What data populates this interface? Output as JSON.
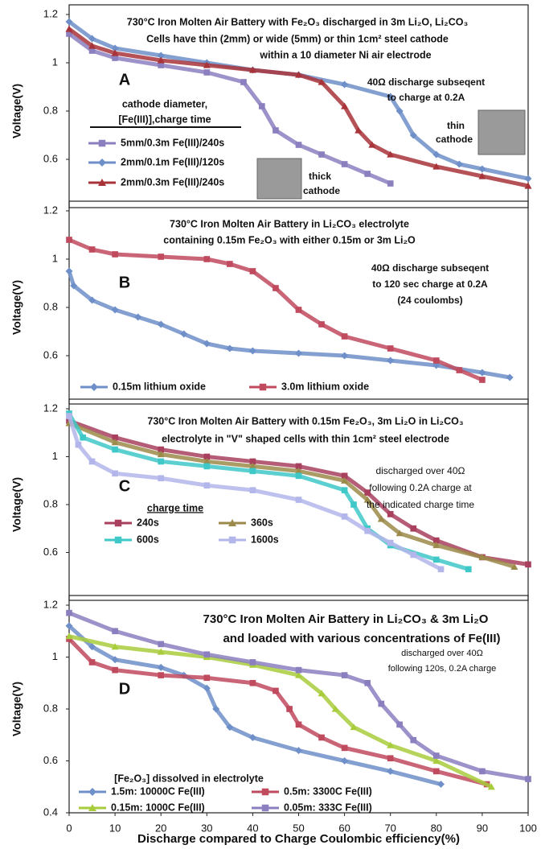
{
  "chart_data": [
    {
      "type": "line",
      "label": "A",
      "title": [
        "730°C  Iron Molten Air Battery with Fe₂O₃ discharged in 3m Li₂O, Li₂CO₃",
        "Cells have thin (2mm) or wide (5mm) or thin 1cm² steel cathode",
        "within a 10 diameter Ni air electrode"
      ],
      "annotations": [
        "40Ω discharge subseqent",
        "to charge at 0.2A",
        "thin",
        "cathode",
        "thick",
        "cathode"
      ],
      "legend_title": [
        "cathode diameter,",
        "[Fe(III)],charge time"
      ],
      "y_label": "Voltage(V)",
      "xlim": [
        0,
        100
      ],
      "ylim": [
        0.4,
        1.2
      ],
      "yticks": [
        0.6,
        0.8,
        1,
        1.2
      ],
      "series": [
        {
          "name": "5mm/0.3m Fe(III)/240s",
          "color": "#8c7fbf",
          "marker": "square",
          "x": [
            0,
            5,
            10,
            20,
            30,
            38,
            42,
            45,
            50,
            55,
            60,
            65,
            70
          ],
          "values": [
            1.12,
            1.05,
            1.02,
            0.99,
            0.96,
            0.92,
            0.82,
            0.72,
            0.66,
            0.62,
            0.58,
            0.54,
            0.5
          ]
        },
        {
          "name": "2mm/0.1m Fe(III)/120s",
          "color": "#6f8fc9",
          "marker": "diamond",
          "x": [
            0,
            5,
            10,
            20,
            30,
            40,
            50,
            60,
            70,
            72,
            75,
            80,
            85,
            90,
            100
          ],
          "values": [
            1.17,
            1.1,
            1.06,
            1.03,
            1.0,
            0.97,
            0.95,
            0.91,
            0.86,
            0.8,
            0.7,
            0.62,
            0.58,
            0.56,
            0.52
          ]
        },
        {
          "name": "2mm/0.3m Fe(III)/240s",
          "color": "#a8343a",
          "marker": "triangle",
          "x": [
            0,
            5,
            10,
            20,
            30,
            40,
            50,
            55,
            60,
            63,
            66,
            70,
            80,
            90,
            100
          ],
          "values": [
            1.14,
            1.07,
            1.04,
            1.01,
            0.99,
            0.97,
            0.95,
            0.92,
            0.82,
            0.72,
            0.66,
            0.62,
            0.57,
            0.53,
            0.49
          ]
        }
      ]
    },
    {
      "type": "line",
      "label": "B",
      "title": [
        "730°C Iron Molten Air Battery in Li₂CO₃ electrolyte",
        "containing 0.15m Fe₂O₃ with either 0.15m or 3m Li₂O"
      ],
      "annotations": [
        "40Ω discharge subseqent",
        "to 120 sec charge at 0.2A",
        "(24 coulombs)"
      ],
      "y_label": "Voltage(V)",
      "xlim": [
        0,
        100
      ],
      "ylim": [
        0.4,
        1.2
      ],
      "yticks": [
        0.6,
        0.8,
        1,
        1.2
      ],
      "series": [
        {
          "name": "0.15m lithium oxide",
          "color": "#6f8fc9",
          "marker": "diamond",
          "x": [
            0,
            1,
            5,
            10,
            15,
            20,
            25,
            30,
            35,
            40,
            50,
            60,
            70,
            80,
            90,
            96
          ],
          "values": [
            0.95,
            0.89,
            0.83,
            0.79,
            0.76,
            0.73,
            0.69,
            0.65,
            0.63,
            0.62,
            0.61,
            0.6,
            0.58,
            0.56,
            0.53,
            0.51
          ]
        },
        {
          "name": "3.0m lithium oxide",
          "color": "#c04a5e",
          "marker": "square",
          "x": [
            0,
            5,
            10,
            20,
            30,
            35,
            40,
            45,
            50,
            55,
            60,
            70,
            80,
            85,
            90
          ],
          "values": [
            1.08,
            1.04,
            1.02,
            1.01,
            1.0,
            0.98,
            0.95,
            0.88,
            0.79,
            0.73,
            0.68,
            0.63,
            0.58,
            0.54,
            0.5
          ]
        }
      ]
    },
    {
      "type": "line",
      "label": "C",
      "title": [
        "730°C Iron Molten Air Battery with 0.15m Fe₂O₃, 3m Li₂O in Li₂CO₃",
        "electrolyte in \"V\" shaped cells with thin 1cm² steel electrode"
      ],
      "annotations": [
        "discharged over 40Ω",
        "following 0.2A charge at",
        "the indicated charge time"
      ],
      "legend_title": [
        "charge time"
      ],
      "y_label": "Voltage(V)",
      "xlim": [
        0,
        100
      ],
      "ylim": [
        0.4,
        1.2
      ],
      "yticks": [
        0.6,
        0.8,
        1,
        1.2
      ],
      "series": [
        {
          "name": "240s",
          "color": "#a8405e",
          "marker": "square",
          "x": [
            0,
            10,
            20,
            30,
            40,
            50,
            60,
            65,
            70,
            75,
            80,
            90,
            100
          ],
          "values": [
            1.15,
            1.08,
            1.03,
            1.0,
            0.98,
            0.96,
            0.92,
            0.85,
            0.76,
            0.7,
            0.65,
            0.58,
            0.55
          ]
        },
        {
          "name": "360s",
          "color": "#9c8a4a",
          "marker": "triangle",
          "x": [
            0,
            10,
            20,
            30,
            40,
            50,
            60,
            65,
            68,
            72,
            80,
            90,
            97
          ],
          "values": [
            1.14,
            1.06,
            1.01,
            0.98,
            0.96,
            0.94,
            0.9,
            0.82,
            0.74,
            0.68,
            0.63,
            0.58,
            0.54
          ]
        },
        {
          "name": "600s",
          "color": "#3fc8c8",
          "marker": "square",
          "x": [
            0,
            3,
            10,
            20,
            30,
            40,
            50,
            60,
            62,
            65,
            70,
            80,
            87
          ],
          "values": [
            1.18,
            1.08,
            1.03,
            0.98,
            0.96,
            0.94,
            0.92,
            0.86,
            0.8,
            0.7,
            0.63,
            0.57,
            0.53
          ]
        },
        {
          "name": "1600s",
          "color": "#b3b6ea",
          "marker": "square",
          "x": [
            0,
            2,
            5,
            10,
            20,
            30,
            40,
            50,
            60,
            65,
            70,
            75,
            81
          ],
          "values": [
            1.17,
            1.05,
            0.98,
            0.93,
            0.91,
            0.88,
            0.86,
            0.82,
            0.75,
            0.69,
            0.64,
            0.59,
            0.53
          ]
        }
      ]
    },
    {
      "type": "line",
      "label": "D",
      "title": [
        "730°C Iron Molten Air Battery in Li₂CO₃ & 3m Li₂O",
        "and loaded with various concentrations of Fe(III)"
      ],
      "annotations": [
        "discharged over 40Ω",
        "following 120s, 0.2A charge"
      ],
      "legend_title": [
        "[Fe₂O₃] dissolved in electrolyte"
      ],
      "y_label": "Voltage(V)",
      "x_label": "Discharge compared to Charge Coulombic efficiency(%)",
      "xlim": [
        0,
        100
      ],
      "xticks": [
        0,
        10,
        20,
        30,
        40,
        50,
        60,
        70,
        80,
        90,
        100
      ],
      "ylim": [
        0.4,
        1.2
      ],
      "yticks": [
        0.4,
        0.6,
        0.8,
        1,
        1.2
      ],
      "series": [
        {
          "name": "1.5m: 10000C Fe(III)",
          "color": "#6f8fc9",
          "marker": "diamond",
          "x": [
            0,
            5,
            10,
            20,
            25,
            30,
            32,
            35,
            40,
            50,
            60,
            70,
            81
          ],
          "values": [
            1.12,
            1.04,
            0.99,
            0.96,
            0.93,
            0.88,
            0.8,
            0.73,
            0.69,
            0.64,
            0.6,
            0.56,
            0.51
          ]
        },
        {
          "name": "0.5m: 3300C Fe(III)",
          "color": "#c04a5e",
          "marker": "square",
          "x": [
            0,
            5,
            10,
            20,
            30,
            40,
            45,
            48,
            50,
            55,
            60,
            70,
            80,
            91
          ],
          "values": [
            1.07,
            0.98,
            0.95,
            0.93,
            0.92,
            0.9,
            0.87,
            0.8,
            0.74,
            0.69,
            0.65,
            0.61,
            0.56,
            0.51
          ]
        },
        {
          "name": "0.15m: 1000C Fe(III)",
          "color": "#a8cc3c",
          "marker": "triangle",
          "x": [
            0,
            10,
            20,
            30,
            40,
            50,
            55,
            58,
            62,
            70,
            80,
            92
          ],
          "values": [
            1.08,
            1.04,
            1.02,
            1.0,
            0.97,
            0.93,
            0.86,
            0.8,
            0.73,
            0.66,
            0.6,
            0.5
          ]
        },
        {
          "name": "0.05m: 333C Fe(III)",
          "color": "#8c7fbf",
          "marker": "square",
          "x": [
            0,
            10,
            20,
            30,
            40,
            50,
            60,
            65,
            68,
            72,
            75,
            80,
            90,
            100
          ],
          "values": [
            1.17,
            1.1,
            1.05,
            1.01,
            0.98,
            0.95,
            0.93,
            0.9,
            0.82,
            0.74,
            0.68,
            0.62,
            0.56,
            0.53
          ]
        }
      ]
    }
  ]
}
